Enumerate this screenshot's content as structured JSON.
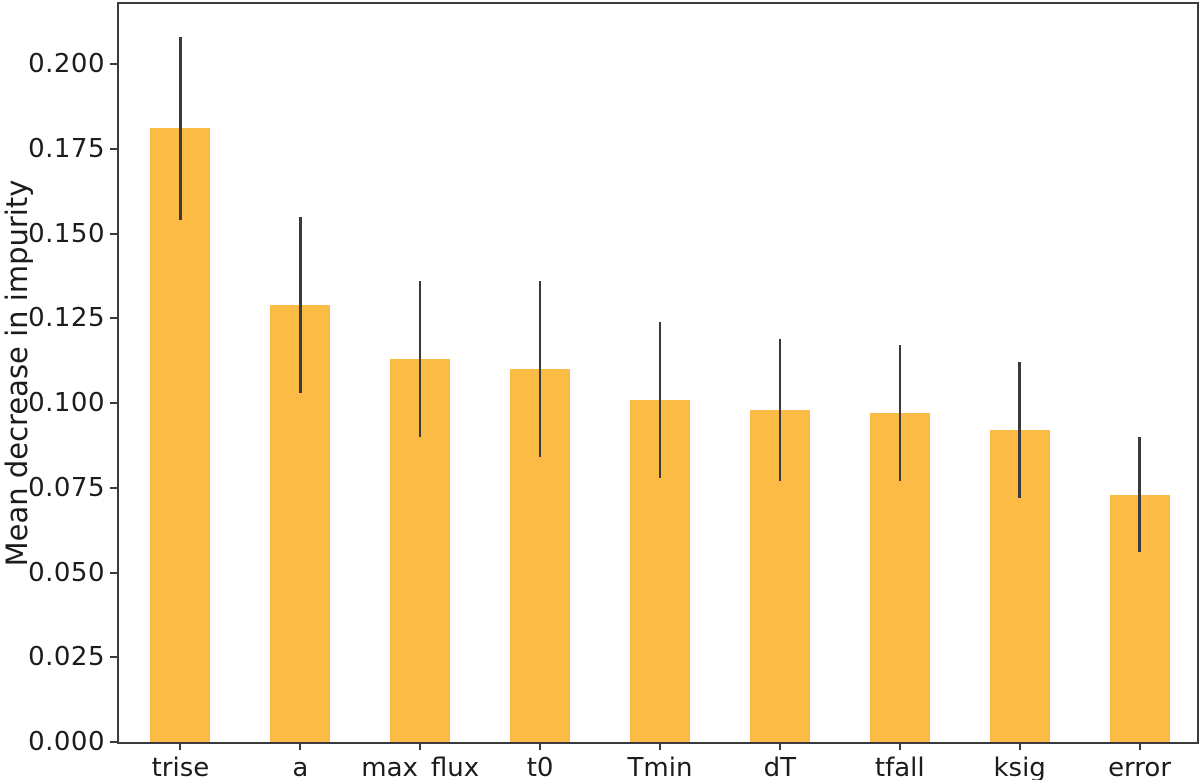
{
  "figure": {
    "background_color": "#ffffff"
  },
  "chart_data": {
    "type": "bar",
    "title": "",
    "xlabel": "",
    "ylabel": "Mean decrease in impurity",
    "categories": [
      "trise",
      "a",
      "max_flux",
      "t0",
      "Tmin",
      "dT",
      "tfall",
      "ksig",
      "error"
    ],
    "values": [
      0.181,
      0.129,
      0.113,
      0.11,
      0.101,
      0.098,
      0.097,
      0.092,
      0.073
    ],
    "error_bars": [
      0.027,
      0.026,
      0.023,
      0.026,
      0.023,
      0.021,
      0.02,
      0.02,
      0.017
    ],
    "ylim": [
      0.0,
      0.218
    ],
    "yticks": [
      0.0,
      0.025,
      0.05,
      0.075,
      0.1,
      0.125,
      0.15,
      0.175,
      0.2
    ],
    "ytick_labels": [
      "0.000",
      "0.025",
      "0.050",
      "0.075",
      "0.100",
      "0.125",
      "0.150",
      "0.175",
      "0.200"
    ],
    "grid": false,
    "legend": null,
    "colors": {
      "bar_fill": "#FBBB44",
      "error_bar": "#3a3a3a",
      "spine": "#3b3b3b",
      "tick_text": "#1c1c1c"
    }
  }
}
